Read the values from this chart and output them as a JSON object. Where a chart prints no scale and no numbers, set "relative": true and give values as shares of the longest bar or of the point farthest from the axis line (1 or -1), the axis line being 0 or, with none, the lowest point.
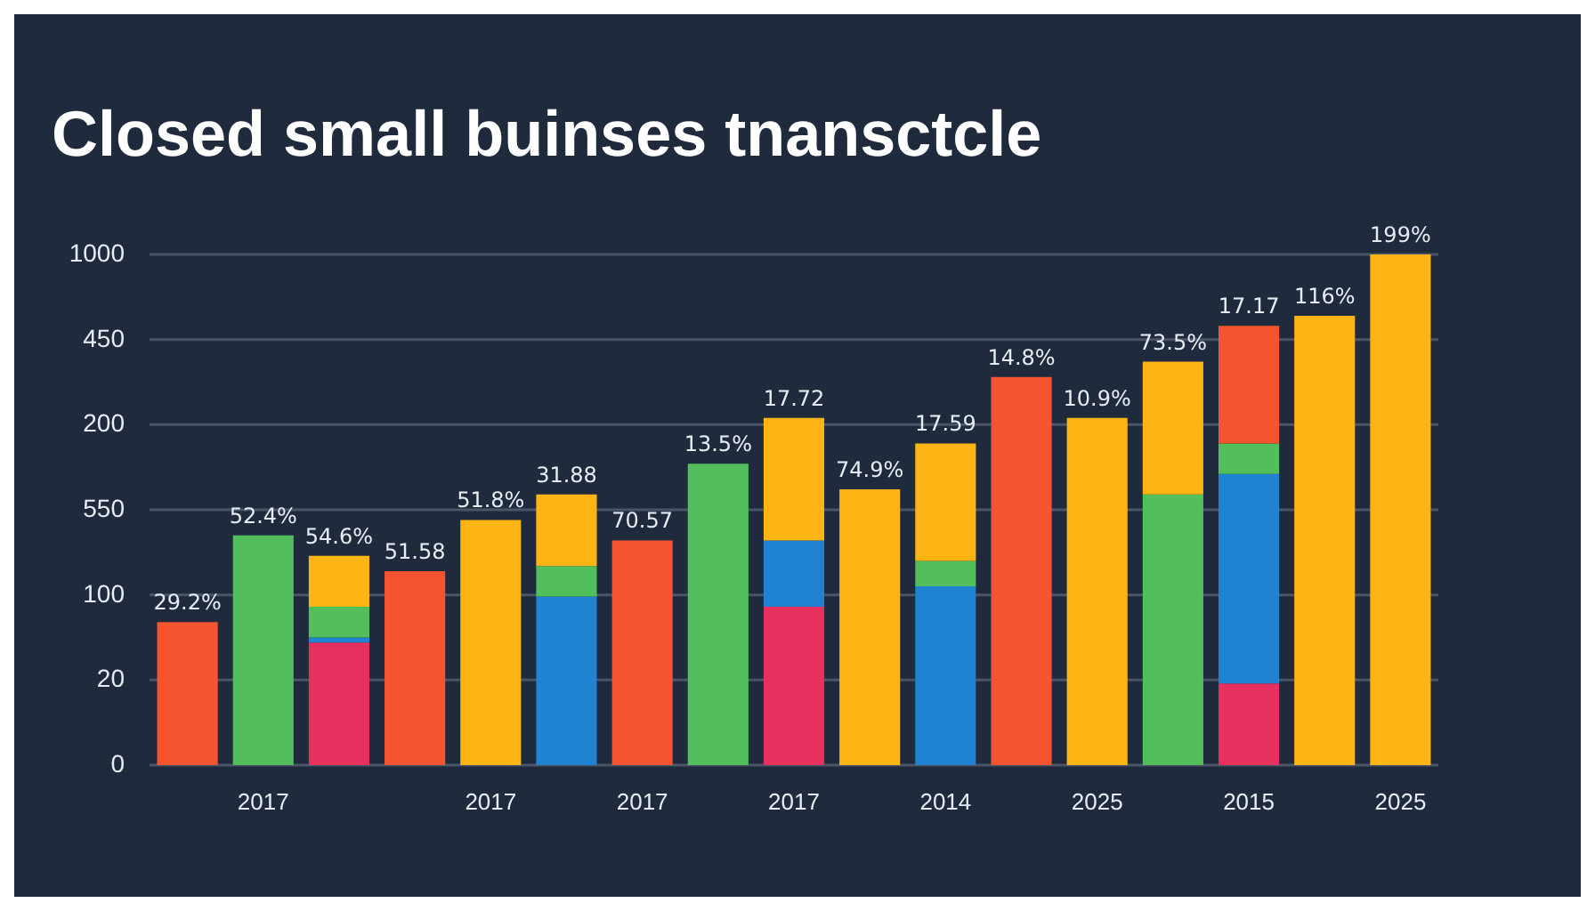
{
  "chart_data": {
    "type": "bar",
    "title": "Closed small buinses tnansctcle",
    "stacked": true,
    "grid": "y",
    "relative": true,
    "categories": [
      null,
      "2017",
      null,
      null,
      "2017",
      null,
      "2017",
      null,
      "2017",
      null,
      "2014",
      null,
      "2025",
      null,
      "2015",
      null,
      "2025"
    ],
    "annotations": [
      "1000",
      "450",
      "200",
      "550",
      "100",
      "20",
      "0",
      "29.2%",
      "52.4%",
      "54.6%",
      "51.58",
      "51.8%",
      "31.88",
      "70.57",
      "13.5%",
      "17.72",
      "74.9%",
      "17.59",
      "14.8%",
      "10.9%",
      "73.5%",
      "17.17",
      "116%",
      "199%"
    ],
    "series": [
      {
        "color": "#e8305e",
        "values": [
          null,
          null,
          0.24,
          null,
          null,
          null,
          null,
          null,
          0.31,
          null,
          null,
          null,
          null,
          null,
          0.16,
          null,
          null
        ]
      },
      {
        "color": "#2083d2",
        "values": [
          null,
          null,
          0.01,
          null,
          null,
          0.33,
          null,
          null,
          0.13,
          null,
          0.35,
          null,
          null,
          null,
          0.41,
          null,
          null
        ]
      },
      {
        "color": "#52bf5c",
        "values": [
          null,
          0.45,
          0.06,
          null,
          null,
          0.06,
          null,
          0.59,
          null,
          null,
          0.05,
          null,
          null,
          0.53,
          0.06,
          null,
          null
        ]
      },
      {
        "color": "#f6532f",
        "values": [
          0.28,
          null,
          null,
          0.38,
          null,
          null,
          0.44,
          null,
          null,
          null,
          null,
          0.76,
          null,
          null,
          0.23,
          null,
          null
        ]
      },
      {
        "color": "#fdb515",
        "values": [
          null,
          null,
          0.1,
          null,
          0.48,
          0.14,
          null,
          null,
          0.24,
          0.54,
          0.23,
          null,
          0.68,
          0.26,
          null,
          0.88,
          1
        ]
      }
    ]
  }
}
